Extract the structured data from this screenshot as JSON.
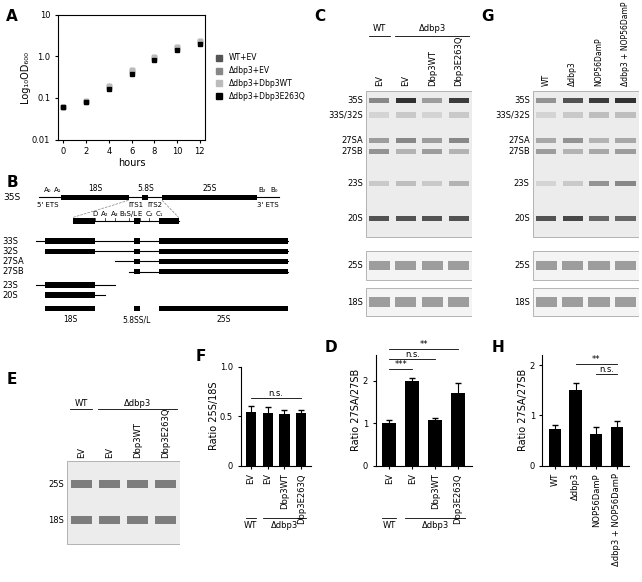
{
  "chart_data": [
    {
      "panel": "A",
      "type": "scatter",
      "log": "y",
      "marker": "square",
      "legend": "center left",
      "xlabel": "hours",
      "ylabel": "Log₁₀OD₆₀₀",
      "x": [
        0,
        2,
        4,
        6,
        8,
        10,
        12
      ],
      "xlim": [
        -0.5,
        12.5
      ],
      "xticks": [
        0,
        2,
        4,
        6,
        8,
        10,
        12
      ],
      "ylim": [
        0.01,
        10
      ],
      "yticks": [
        0.01,
        0.1,
        {
          "value": 1,
          "label": "1.0"
        },
        10
      ],
      "series": [
        {
          "name": "WT+EV",
          "color": "#555555",
          "values": [
            0.06,
            0.085,
            0.19,
            0.48,
            0.95,
            1.7,
            2.3
          ]
        },
        {
          "name": "Δdbp3+EV",
          "color": "#888888",
          "values": [
            0.06,
            0.08,
            0.17,
            0.42,
            0.85,
            1.5,
            2.1
          ]
        },
        {
          "name": "Δdbp3+Dbp3WT",
          "color": "#bbbbbb",
          "values": [
            0.06,
            0.085,
            0.19,
            0.47,
            0.95,
            1.65,
            2.3
          ]
        },
        {
          "name": "Δdbp3+Dbp3E263Q",
          "color": "#000000",
          "values": [
            0.06,
            0.08,
            0.16,
            0.38,
            0.8,
            1.45,
            2.0
          ]
        }
      ]
    },
    {
      "panel": "D",
      "type": "bar",
      "color": "#000000",
      "ylabel": "Ratio 27SA/27SB",
      "categories": [
        "EV",
        "EV",
        "Dbp3WT",
        "Dbp3E263Q"
      ],
      "values": [
        1.0,
        2.0,
        1.08,
        1.7
      ],
      "errors": [
        0.08,
        0.07,
        0.03,
        0.25
      ],
      "ylim": [
        0,
        2.6
      ],
      "yticks": [
        0,
        1,
        2
      ],
      "groups": [
        {
          "label": "WT",
          "count": 1
        },
        {
          "label": "Δdbp3",
          "count": 3
        }
      ],
      "significance": [
        {
          "from": 0,
          "to": 1,
          "label": "***"
        },
        {
          "from": 0,
          "to": 2,
          "label": "n.s."
        },
        {
          "from": 0,
          "to": 3,
          "label": "**"
        }
      ]
    },
    {
      "panel": "F",
      "type": "bar",
      "color": "#000000",
      "ylabel": "Ratio 25S/18S",
      "categories": [
        "EV",
        "EV",
        "Dbp3WT",
        "Dbp3E263Q"
      ],
      "values": [
        0.54,
        0.53,
        0.52,
        0.53
      ],
      "errors": [
        0.06,
        0.06,
        0.04,
        0.03
      ],
      "ylim": [
        0,
        1.0
      ],
      "yticks": [
        0,
        0.5,
        {
          "value": 1,
          "label": "1.0"
        }
      ],
      "groups": [
        {
          "label": "WT",
          "count": 1
        },
        {
          "label": "Δdbp3",
          "count": 3
        }
      ],
      "significance": [
        {
          "from": 0,
          "to": 3,
          "label": "n.s."
        }
      ]
    },
    {
      "panel": "H",
      "type": "bar",
      "color": "#000000",
      "ylabel": "Ratio 27SA/27SB",
      "categories": [
        "WT",
        "Δdbp3",
        "NOP56DamP",
        "Δdbp3 + NOP56DamP"
      ],
      "values": [
        0.72,
        1.5,
        0.62,
        0.77
      ],
      "errors": [
        0.08,
        0.15,
        0.15,
        0.12
      ],
      "ylim": [
        0,
        2.2
      ],
      "yticks": [
        0,
        1,
        2
      ],
      "significance": [
        {
          "from": 2,
          "to": 3,
          "label": "n.s."
        },
        {
          "from": 1,
          "to": 3,
          "label": "**"
        }
      ]
    }
  ],
  "diagram": {
    "panel": "B",
    "precursor": "35S",
    "mature": [
      "18S",
      "5.8S",
      "25S"
    ],
    "sites_5prime": [
      "A₀",
      "A₁"
    ],
    "sites_3prime": [
      "B₂",
      "B₀"
    ],
    "spacers": [
      "5' ETS",
      "ITS1",
      "ITS2",
      "3' ETS"
    ],
    "zoom_sites": [
      "D",
      "A₂",
      "A₃",
      "B₁S/L",
      "E",
      "C₂",
      "C₁"
    ],
    "intermediates": [
      "33S",
      "32S",
      "27SA",
      "27SB",
      "23S",
      "20S"
    ],
    "products": [
      "18S",
      "5.8SS/L",
      "25S"
    ]
  },
  "blots": [
    {
      "panel": "C",
      "lanes": [
        "EV",
        "EV",
        "Dbp3WT",
        "Dbp3E263Q"
      ],
      "groups": [
        {
          "label": "WT",
          "count": 1
        },
        {
          "label": "Δdbp3",
          "count": 3
        }
      ],
      "bands": [
        {
          "label": "35S",
          "signal": [
            0.55,
            0.95,
            0.45,
            0.9
          ]
        },
        {
          "label": "33S/32S",
          "signal": [
            0.2,
            0.25,
            0.2,
            0.25
          ]
        },
        {
          "label": "27SA",
          "signal": [
            0.45,
            0.55,
            0.45,
            0.55
          ]
        },
        {
          "label": "27SB",
          "signal": [
            0.5,
            0.35,
            0.45,
            0.35
          ]
        },
        {
          "label": "23S",
          "signal": [
            0.25,
            0.3,
            0.25,
            0.35
          ]
        },
        {
          "label": "20S",
          "signal": [
            0.8,
            0.8,
            0.8,
            0.8
          ]
        }
      ],
      "loading": [
        {
          "label": "25S",
          "signal": [
            0.45,
            0.45,
            0.45,
            0.45
          ]
        },
        {
          "label": "18S",
          "signal": [
            0.45,
            0.45,
            0.45,
            0.45
          ]
        }
      ]
    },
    {
      "panel": "G",
      "lanes": [
        "WT",
        "Δdbp3",
        "NOP56DamP",
        "Δdbp3 + NOP56DamP"
      ],
      "bands": [
        {
          "label": "35S",
          "signal": [
            0.5,
            0.8,
            0.9,
            0.95
          ]
        },
        {
          "label": "33S/32S",
          "signal": [
            0.2,
            0.25,
            0.3,
            0.3
          ]
        },
        {
          "label": "27SA",
          "signal": [
            0.4,
            0.5,
            0.35,
            0.4
          ]
        },
        {
          "label": "27SB",
          "signal": [
            0.45,
            0.35,
            0.4,
            0.45
          ]
        },
        {
          "label": "23S",
          "signal": [
            0.2,
            0.25,
            0.5,
            0.55
          ]
        },
        {
          "label": "20S",
          "signal": [
            0.8,
            0.85,
            0.7,
            0.7
          ]
        }
      ],
      "loading": [
        {
          "label": "25S",
          "signal": [
            0.45,
            0.45,
            0.45,
            0.45
          ]
        },
        {
          "label": "18S",
          "signal": [
            0.45,
            0.45,
            0.45,
            0.45
          ]
        }
      ]
    },
    {
      "panel": "E",
      "lanes": [
        "EV",
        "EV",
        "Dbp3WT",
        "Dbp3E263Q"
      ],
      "groups": [
        {
          "label": "WT",
          "count": 1
        },
        {
          "label": "Δdbp3",
          "count": 3
        }
      ],
      "bands": [
        {
          "label": "25S",
          "signal": [
            0.6,
            0.6,
            0.6,
            0.6
          ]
        },
        {
          "label": "18S",
          "signal": [
            0.6,
            0.6,
            0.6,
            0.6
          ]
        }
      ]
    }
  ]
}
